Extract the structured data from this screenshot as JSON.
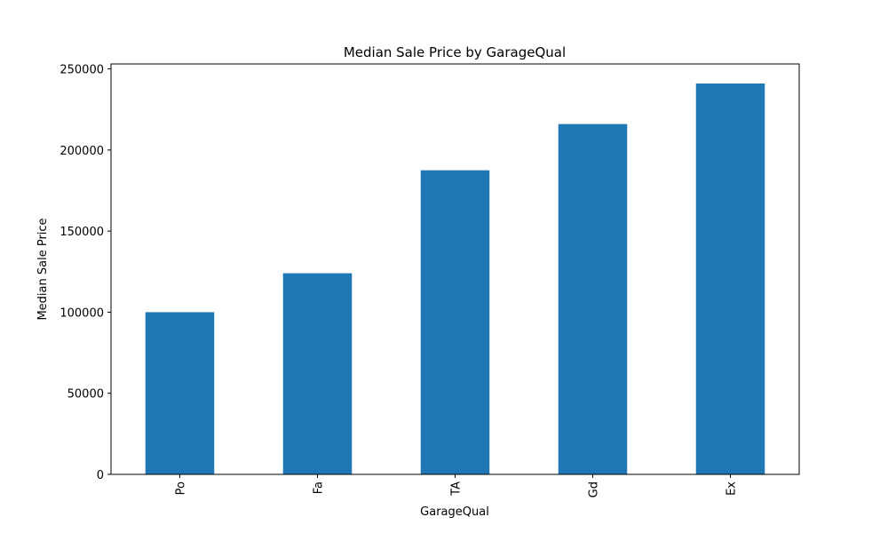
{
  "chart_data": {
    "type": "bar",
    "title": "Median Sale Price by GarageQual",
    "xlabel": "GarageQual",
    "ylabel": "Median Sale Price",
    "categories": [
      "Po",
      "Fa",
      "TA",
      "Gd",
      "Ex"
    ],
    "values": [
      100000,
      124000,
      187500,
      216000,
      241000
    ],
    "ylim": [
      0,
      253050
    ],
    "yticks": [
      0,
      50000,
      100000,
      150000,
      200000,
      250000
    ],
    "ytick_labels": [
      "0",
      "50000",
      "100000",
      "150000",
      "200000",
      "250000"
    ],
    "x_tick_rotation": "vertical",
    "grid": false,
    "legend": "none",
    "bar_color": "#1f77b4"
  }
}
